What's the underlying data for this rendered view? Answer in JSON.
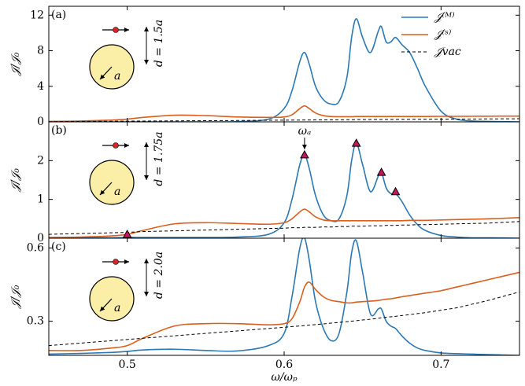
{
  "chart_data": [
    {
      "type": "line",
      "label": "(a)",
      "ylabel": "𝒥/𝒥₀",
      "legend": "upper right",
      "inset": {
        "d_label": "d = 1.5a",
        "radius_label": "a"
      },
      "xlim": [
        0.45,
        0.75
      ],
      "xticks": [
        0.5,
        0.6,
        0.7
      ],
      "ylim": [
        0,
        13
      ],
      "yticks": [
        0,
        4,
        8,
        12
      ],
      "x": [
        0.45,
        0.47,
        0.49,
        0.5,
        0.51,
        0.53,
        0.55,
        0.57,
        0.59,
        0.6,
        0.605,
        0.61,
        0.613,
        0.616,
        0.62,
        0.625,
        0.63,
        0.635,
        0.64,
        0.643,
        0.646,
        0.65,
        0.655,
        0.66,
        0.662,
        0.665,
        0.668,
        0.671,
        0.675,
        0.68,
        0.685,
        0.69,
        0.7,
        0.71,
        0.72,
        0.73,
        0.75
      ],
      "series": [
        {
          "name": "𝒥⁽ᴹ⁾",
          "color": "#2b78b5",
          "style": "solid",
          "values": [
            0,
            0,
            0,
            0,
            0,
            0,
            0,
            0.02,
            0.3,
            1.5,
            3.5,
            6.8,
            7.8,
            6.5,
            4,
            2.5,
            2,
            2.3,
            5,
            9.5,
            11.6,
            9.5,
            7.8,
            10.2,
            10.7,
            9,
            9,
            9.5,
            8.7,
            7.8,
            6,
            4,
            1.2,
            0.3,
            0.1,
            0.05,
            0
          ]
        },
        {
          "name": "𝒥⁽ˢ⁾",
          "color": "#d95f1e",
          "style": "solid",
          "values": [
            0.05,
            0.1,
            0.2,
            0.3,
            0.5,
            0.75,
            0.7,
            0.55,
            0.5,
            0.55,
            0.8,
            1.5,
            1.8,
            1.5,
            1.0,
            0.7,
            0.6,
            0.58,
            0.58,
            0.58,
            0.6,
            0.6,
            0.6,
            0.6,
            0.6,
            0.6,
            0.6,
            0.6,
            0.6,
            0.6,
            0.6,
            0.6,
            0.62,
            0.62,
            0.63,
            0.64,
            0.65
          ]
        },
        {
          "name": "𝒥vac",
          "color": "#000000",
          "style": "dashed",
          "values": [
            0.02,
            0.05,
            0.07,
            0.08,
            0.09,
            0.11,
            0.13,
            0.15,
            0.18,
            0.19,
            0.2,
            0.2,
            0.21,
            0.21,
            0.22,
            0.22,
            0.23,
            0.23,
            0.24,
            0.24,
            0.25,
            0.25,
            0.26,
            0.26,
            0.26,
            0.27,
            0.27,
            0.27,
            0.28,
            0.28,
            0.29,
            0.29,
            0.3,
            0.31,
            0.32,
            0.33,
            0.35
          ]
        }
      ]
    },
    {
      "type": "line",
      "label": "(b)",
      "ylabel": "𝒥/𝒥₀",
      "annotation": "ωₐ",
      "inset": {
        "d_label": "d = 1.75a",
        "radius_label": "a"
      },
      "xlim": [
        0.45,
        0.75
      ],
      "xticks": [
        0.5,
        0.6,
        0.7
      ],
      "ylim": [
        0,
        3
      ],
      "yticks": [
        0,
        1,
        2
      ],
      "x": [
        0.45,
        0.47,
        0.49,
        0.5,
        0.51,
        0.53,
        0.55,
        0.57,
        0.59,
        0.6,
        0.605,
        0.61,
        0.613,
        0.616,
        0.62,
        0.625,
        0.63,
        0.635,
        0.64,
        0.643,
        0.646,
        0.65,
        0.655,
        0.66,
        0.662,
        0.665,
        0.668,
        0.671,
        0.675,
        0.68,
        0.685,
        0.69,
        0.7,
        0.71,
        0.72,
        0.73,
        0.75
      ],
      "series": [
        {
          "name": "𝒥⁽ᴹ⁾",
          "color": "#2b78b5",
          "style": "solid",
          "values": [
            0.01,
            0.01,
            0.01,
            0.02,
            0.02,
            0.02,
            0.02,
            0.03,
            0.1,
            0.4,
            1.0,
            1.9,
            2.15,
            1.8,
            1.1,
            0.6,
            0.45,
            0.5,
            1.1,
            2.0,
            2.45,
            1.9,
            1.2,
            1.6,
            1.7,
            1.3,
            1.15,
            1.15,
            0.95,
            0.6,
            0.35,
            0.2,
            0.07,
            0.03,
            0.01,
            0.01,
            0
          ]
        },
        {
          "name": "𝒥⁽ˢ⁾",
          "color": "#d95f1e",
          "style": "solid",
          "values": [
            0.02,
            0.03,
            0.06,
            0.1,
            0.2,
            0.37,
            0.4,
            0.38,
            0.36,
            0.4,
            0.5,
            0.68,
            0.75,
            0.68,
            0.55,
            0.47,
            0.45,
            0.45,
            0.45,
            0.45,
            0.45,
            0.45,
            0.45,
            0.45,
            0.45,
            0.45,
            0.45,
            0.45,
            0.45,
            0.46,
            0.46,
            0.46,
            0.47,
            0.48,
            0.49,
            0.5,
            0.53
          ]
        },
        {
          "name": "𝒥vac",
          "color": "#000000",
          "style": "dashed",
          "values": [
            0.1,
            0.12,
            0.14,
            0.15,
            0.17,
            0.19,
            0.21,
            0.23,
            0.25,
            0.26,
            0.27,
            0.27,
            0.28,
            0.28,
            0.28,
            0.29,
            0.29,
            0.3,
            0.3,
            0.31,
            0.31,
            0.31,
            0.32,
            0.32,
            0.32,
            0.33,
            0.33,
            0.33,
            0.34,
            0.34,
            0.35,
            0.35,
            0.36,
            0.37,
            0.38,
            0.39,
            0.43
          ]
        }
      ],
      "markers": {
        "color": "#c2185b",
        "x": [
          0.5,
          0.613,
          0.646,
          0.662,
          0.671
        ],
        "values": [
          0.1,
          2.15,
          2.45,
          1.7,
          1.2
        ]
      }
    },
    {
      "type": "line",
      "label": "(c)",
      "ylabel": "𝒥/𝒥₀",
      "xlabel": "ω/ωₚ",
      "inset": {
        "d_label": "d = 2.0a",
        "radius_label": "a"
      },
      "xlim": [
        0.45,
        0.75
      ],
      "xticks": [
        0.5,
        0.6,
        0.7
      ],
      "ylim": [
        0.16,
        0.64
      ],
      "yticks": [
        0.3,
        0.6
      ],
      "x": [
        0.45,
        0.47,
        0.49,
        0.5,
        0.51,
        0.53,
        0.55,
        0.57,
        0.59,
        0.6,
        0.605,
        0.61,
        0.613,
        0.616,
        0.62,
        0.625,
        0.63,
        0.635,
        0.64,
        0.643,
        0.646,
        0.65,
        0.655,
        0.66,
        0.662,
        0.665,
        0.668,
        0.671,
        0.675,
        0.68,
        0.685,
        0.69,
        0.7,
        0.71,
        0.72,
        0.73,
        0.75
      ],
      "series": [
        {
          "name": "𝒥⁽ᴹ⁾",
          "color": "#2b78b5",
          "style": "solid",
          "values": [
            0.165,
            0.168,
            0.172,
            0.176,
            0.182,
            0.185,
            0.18,
            0.178,
            0.2,
            0.25,
            0.4,
            0.6,
            0.64,
            0.55,
            0.38,
            0.27,
            0.22,
            0.25,
            0.42,
            0.58,
            0.63,
            0.5,
            0.33,
            0.35,
            0.35,
            0.3,
            0.28,
            0.27,
            0.24,
            0.21,
            0.19,
            0.18,
            0.17,
            0.167,
            0.165,
            0.163,
            0.16
          ]
        },
        {
          "name": "𝒥⁽ˢ⁾",
          "color": "#d95f1e",
          "style": "solid",
          "values": [
            0.18,
            0.18,
            0.19,
            0.2,
            0.23,
            0.28,
            0.29,
            0.29,
            0.285,
            0.29,
            0.31,
            0.38,
            0.44,
            0.46,
            0.43,
            0.4,
            0.385,
            0.38,
            0.375,
            0.375,
            0.378,
            0.38,
            0.382,
            0.385,
            0.387,
            0.39,
            0.392,
            0.395,
            0.4,
            0.405,
            0.41,
            0.415,
            0.425,
            0.44,
            0.455,
            0.47,
            0.5
          ]
        },
        {
          "name": "𝒥vac",
          "color": "#000000",
          "style": "dashed",
          "values": [
            0.2,
            0.21,
            0.22,
            0.225,
            0.23,
            0.24,
            0.25,
            0.26,
            0.27,
            0.275,
            0.278,
            0.28,
            0.282,
            0.284,
            0.286,
            0.289,
            0.292,
            0.295,
            0.298,
            0.3,
            0.302,
            0.305,
            0.308,
            0.312,
            0.314,
            0.316,
            0.318,
            0.32,
            0.323,
            0.327,
            0.331,
            0.335,
            0.345,
            0.355,
            0.37,
            0.385,
            0.42
          ]
        }
      ]
    }
  ]
}
